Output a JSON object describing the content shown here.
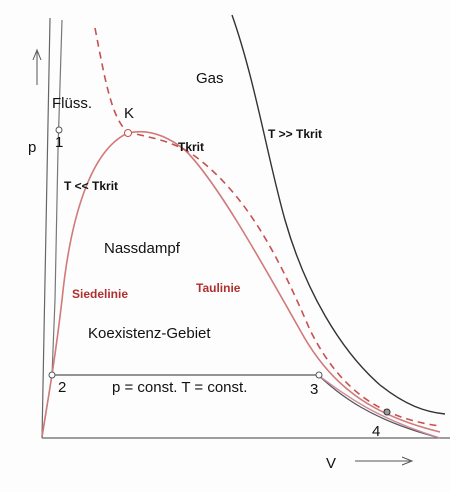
{
  "labels": {
    "p": "p",
    "v": "V",
    "gas": "Gas",
    "fluess": "Flüss.",
    "k": "K",
    "tkrit": "Tkrit",
    "t_high": "T >> Tkrit",
    "t_low": "T << Tkrit",
    "nassdampf": "Nassdampf",
    "siedelinie": "Siedelinie",
    "taulinie": "Taulinie",
    "koexistenz": "Koexistenz-Gebiet",
    "isobar": "p = const. T = const."
  },
  "points": {
    "p1": "1",
    "p2": "2",
    "p3": "3",
    "p4": "4"
  }
}
